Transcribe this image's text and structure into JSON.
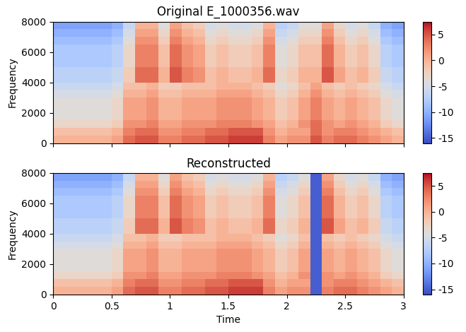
{
  "chart_data": [
    {
      "type": "heatmap",
      "title": "Original E_1000356.wav",
      "ylabel": "Frequency",
      "tick_labels": "y",
      "x_edges": [
        0,
        0.1,
        0.2,
        0.3,
        0.4,
        0.5,
        0.6,
        0.7,
        0.8,
        0.9,
        1.0,
        1.1,
        1.2,
        1.3,
        1.4,
        1.5,
        1.6,
        1.7,
        1.8,
        1.9,
        2.0,
        2.1,
        2.2,
        2.3,
        2.4,
        2.5,
        2.6,
        2.7,
        2.8,
        2.9,
        3.0
      ],
      "y_edges": [
        0,
        500,
        1000,
        1500,
        2000,
        2500,
        3000,
        3500,
        4000,
        4500,
        5000,
        5500,
        6000,
        6500,
        7000,
        7500,
        8000
      ],
      "xlim": [
        0,
        3
      ],
      "ylim": [
        0,
        8000
      ],
      "xticks": [
        0,
        0.5,
        1,
        1.5,
        2,
        2.5,
        3
      ],
      "yticks": [
        0,
        2000,
        4000,
        6000,
        8000
      ],
      "color": "coolwarm",
      "colorbar": {
        "range": [
          -16,
          7.5
        ],
        "ticks": [
          -15,
          -10,
          -5,
          0,
          5
        ]
      },
      "cells": [
        [
          0,
          0,
          0,
          0,
          0,
          1,
          4,
          5,
          5,
          3,
          3,
          4,
          4,
          5,
          5,
          6,
          6,
          6,
          3,
          1,
          2,
          2,
          5,
          3,
          4,
          4,
          3,
          2,
          1,
          0
        ],
        [
          -1,
          -1,
          -1,
          -1,
          -1,
          0,
          3,
          4,
          4,
          2,
          2,
          3,
          3,
          4,
          4,
          5,
          5,
          5,
          2,
          0,
          1,
          1,
          4,
          2,
          3,
          3,
          2,
          1,
          0,
          -1
        ],
        [
          -3,
          -3,
          -3,
          -3,
          -3,
          -2,
          2,
          2,
          3,
          1,
          1,
          2,
          2,
          2,
          3,
          3,
          3,
          2,
          1,
          -1,
          0,
          2,
          4,
          2,
          1,
          2,
          1,
          0,
          -2,
          -3
        ],
        [
          -4,
          -4,
          -4,
          -4,
          -4,
          -3,
          1,
          1,
          2,
          0,
          0,
          1,
          1,
          1,
          2,
          2,
          2,
          1,
          0,
          -2,
          -1,
          1,
          3,
          1,
          0,
          1,
          0,
          -1,
          -3,
          -4
        ],
        [
          -4,
          -4,
          -4,
          -4,
          -4,
          -3,
          1,
          1,
          2,
          0,
          0,
          1,
          1,
          1,
          2,
          2,
          2,
          1,
          0,
          -2,
          -1,
          1,
          3,
          1,
          0,
          1,
          0,
          -1,
          -3,
          -4
        ],
        [
          -4,
          -4,
          -4,
          -4,
          -4,
          -3,
          1,
          1,
          2,
          0,
          0,
          1,
          1,
          1,
          2,
          2,
          2,
          1,
          0,
          -2,
          -1,
          1,
          3,
          1,
          0,
          1,
          0,
          -1,
          -3,
          -4
        ],
        [
          -5,
          -5,
          -5,
          -5,
          -5,
          -4,
          0,
          0,
          1,
          -1,
          -1,
          0,
          0,
          0,
          1,
          1,
          1,
          0,
          -1,
          -3,
          -2,
          0,
          2,
          0,
          -1,
          0,
          -1,
          -2,
          -4,
          -5
        ],
        [
          -6,
          -6,
          -6,
          -6,
          -6,
          -5,
          -1,
          -1,
          0,
          -2,
          -2,
          -1,
          -1,
          -1,
          0,
          0,
          0,
          -1,
          -2,
          -4,
          -3,
          -1,
          1,
          -1,
          -2,
          -1,
          -2,
          -3,
          -5,
          -6
        ],
        [
          -7,
          -7,
          -7,
          -7,
          -7,
          -6,
          -2,
          4,
          4,
          0,
          5,
          3,
          2,
          -1,
          0,
          -1,
          -1,
          0,
          4,
          -3,
          -2,
          0,
          0,
          5,
          1,
          -1,
          0,
          -2,
          -6,
          -7
        ],
        [
          -7,
          -7,
          -7,
          -7,
          -7,
          -6,
          -2,
          4,
          4,
          0,
          5,
          3,
          2,
          -1,
          0,
          -1,
          -1,
          0,
          4,
          -3,
          -2,
          0,
          0,
          5,
          1,
          -1,
          0,
          -2,
          -6,
          -7
        ],
        [
          -8,
          -8,
          -8,
          -8,
          -8,
          -7,
          -3,
          3,
          3,
          -1,
          4,
          2,
          1,
          -2,
          -1,
          -2,
          -2,
          -1,
          3,
          -4,
          -3,
          -1,
          -1,
          4,
          0,
          -2,
          -1,
          -3,
          -7,
          -8
        ],
        [
          -8,
          -8,
          -8,
          -8,
          -8,
          -7,
          -3,
          3,
          3,
          -1,
          4,
          2,
          1,
          -2,
          -1,
          -2,
          -2,
          -1,
          3,
          -4,
          -3,
          -1,
          -1,
          4,
          0,
          -2,
          -1,
          -3,
          -7,
          -8
        ],
        [
          -8,
          -8,
          -8,
          -8,
          -8,
          -7,
          -3,
          3,
          3,
          -1,
          4,
          2,
          1,
          -2,
          -1,
          -2,
          -2,
          -1,
          3,
          -4,
          -3,
          -1,
          -1,
          4,
          0,
          -2,
          -1,
          -3,
          -7,
          -8
        ],
        [
          -9,
          -9,
          -9,
          -9,
          -9,
          -8,
          -4,
          2,
          2,
          -2,
          3,
          1,
          0,
          -3,
          -2,
          -3,
          -3,
          -2,
          2,
          -5,
          -4,
          -2,
          -2,
          3,
          -1,
          -3,
          -2,
          -4,
          -8,
          -9
        ],
        [
          -10,
          -10,
          -10,
          -10,
          -10,
          -9,
          -5,
          1,
          1,
          -3,
          2,
          0,
          -1,
          -4,
          -3,
          -4,
          -4,
          -3,
          1,
          -6,
          -5,
          -3,
          -3,
          2,
          -2,
          -4,
          -3,
          -5,
          -9,
          -10
        ],
        [
          -11,
          -11,
          -11,
          -11,
          -11,
          -10,
          -6,
          0,
          0,
          -4,
          1,
          -1,
          -2,
          -5,
          -4,
          -5,
          -5,
          -4,
          0,
          -7,
          -6,
          -4,
          -4,
          1,
          -3,
          -5,
          -4,
          -6,
          -10,
          -11
        ]
      ]
    },
    {
      "type": "heatmap",
      "title": "Reconstructed",
      "xlabel": "Time",
      "ylabel": "Frequency",
      "x_edges": [
        0,
        0.1,
        0.2,
        0.3,
        0.4,
        0.5,
        0.6,
        0.7,
        0.8,
        0.9,
        1.0,
        1.1,
        1.2,
        1.3,
        1.4,
        1.5,
        1.6,
        1.7,
        1.8,
        1.9,
        2.0,
        2.1,
        2.2,
        2.3,
        2.4,
        2.5,
        2.6,
        2.7,
        2.8,
        2.9,
        3.0
      ],
      "y_edges": [
        0,
        500,
        1000,
        1500,
        2000,
        2500,
        3000,
        3500,
        4000,
        4500,
        5000,
        5500,
        6000,
        6500,
        7000,
        7500,
        8000
      ],
      "xlim": [
        0,
        3
      ],
      "ylim": [
        0,
        8000
      ],
      "xticks": [
        0,
        0.5,
        1,
        1.5,
        2,
        2.5,
        3
      ],
      "yticks": [
        0,
        2000,
        4000,
        6000,
        8000
      ],
      "color": "coolwarm",
      "colorbar": {
        "range": [
          -16,
          7.5
        ],
        "ticks": [
          -15,
          -10,
          -5,
          0,
          5
        ]
      },
      "cells": [
        [
          0,
          0,
          0,
          0,
          0,
          1,
          4,
          5,
          5,
          3,
          3,
          4,
          4,
          5,
          5,
          6,
          6,
          6,
          3,
          1,
          2,
          2,
          -15,
          3,
          4,
          4,
          3,
          2,
          1,
          0
        ],
        [
          -1,
          -1,
          -1,
          -1,
          -1,
          0,
          3,
          4,
          4,
          2,
          2,
          3,
          3,
          4,
          4,
          5,
          5,
          5,
          2,
          0,
          1,
          1,
          -15,
          2,
          3,
          3,
          2,
          1,
          0,
          -1
        ],
        [
          -3,
          -3,
          -3,
          -3,
          -3,
          -2,
          2,
          2,
          3,
          1,
          1,
          2,
          2,
          2,
          3,
          3,
          3,
          2,
          1,
          -1,
          0,
          2,
          -15,
          2,
          1,
          2,
          1,
          0,
          -2,
          -3
        ],
        [
          -4,
          -4,
          -4,
          -4,
          -4,
          -3,
          1,
          1,
          2,
          0,
          0,
          1,
          1,
          1,
          2,
          2,
          2,
          1,
          0,
          -2,
          -1,
          1,
          -15,
          1,
          0,
          1,
          0,
          -1,
          -3,
          -4
        ],
        [
          -4,
          -4,
          -4,
          -4,
          -4,
          -3,
          1,
          1,
          2,
          0,
          0,
          1,
          1,
          1,
          2,
          2,
          2,
          1,
          0,
          -2,
          -1,
          1,
          -15,
          1,
          0,
          1,
          0,
          -1,
          -3,
          -4
        ],
        [
          -4,
          -4,
          -4,
          -4,
          -4,
          -3,
          1,
          1,
          2,
          0,
          0,
          1,
          1,
          1,
          2,
          2,
          2,
          1,
          0,
          -2,
          -1,
          1,
          -15,
          1,
          0,
          1,
          0,
          -1,
          -3,
          -4
        ],
        [
          -5,
          -5,
          -5,
          -5,
          -5,
          -4,
          0,
          0,
          1,
          -1,
          -1,
          0,
          0,
          0,
          1,
          1,
          1,
          0,
          -1,
          -3,
          -2,
          0,
          -15,
          0,
          -1,
          0,
          -1,
          -2,
          -4,
          -5
        ],
        [
          -6,
          -6,
          -6,
          -6,
          -6,
          -5,
          -1,
          -1,
          0,
          -2,
          -2,
          -1,
          -1,
          -1,
          0,
          0,
          0,
          -1,
          -2,
          -4,
          -3,
          -1,
          -15,
          -1,
          -2,
          -1,
          -2,
          -3,
          -5,
          -6
        ],
        [
          -7,
          -7,
          -7,
          -7,
          -7,
          -6,
          -2,
          4,
          4,
          0,
          5,
          3,
          2,
          -1,
          0,
          -1,
          -1,
          0,
          4,
          -3,
          -2,
          0,
          -15,
          5,
          1,
          -1,
          0,
          -2,
          -6,
          -7
        ],
        [
          -7,
          -7,
          -7,
          -7,
          -7,
          -6,
          -2,
          4,
          4,
          0,
          5,
          3,
          2,
          -1,
          0,
          -1,
          -1,
          0,
          4,
          -3,
          -2,
          0,
          -15,
          5,
          1,
          -1,
          0,
          -2,
          -6,
          -7
        ],
        [
          -8,
          -8,
          -8,
          -8,
          -8,
          -7,
          -3,
          3,
          3,
          -1,
          4,
          2,
          1,
          -2,
          -1,
          -2,
          -2,
          -1,
          3,
          -4,
          -3,
          -1,
          -15,
          4,
          0,
          -2,
          -1,
          -3,
          -7,
          -8
        ],
        [
          -8,
          -8,
          -8,
          -8,
          -8,
          -7,
          -3,
          3,
          3,
          -1,
          4,
          2,
          1,
          -2,
          -1,
          -2,
          -2,
          -1,
          3,
          -4,
          -3,
          -1,
          -15,
          4,
          0,
          -2,
          -1,
          -3,
          -7,
          -8
        ],
        [
          -8,
          -8,
          -8,
          -8,
          -8,
          -7,
          -3,
          3,
          3,
          -1,
          4,
          2,
          1,
          -2,
          -1,
          -2,
          -2,
          -1,
          3,
          -4,
          -3,
          -1,
          -15,
          4,
          0,
          -2,
          -1,
          -3,
          -7,
          -8
        ],
        [
          -9,
          -9,
          -9,
          -9,
          -9,
          -8,
          -4,
          2,
          2,
          -2,
          3,
          1,
          0,
          -3,
          -2,
          -3,
          -3,
          -2,
          2,
          -5,
          -4,
          -2,
          -15,
          3,
          -1,
          -3,
          -2,
          -4,
          -8,
          -9
        ],
        [
          -10,
          -10,
          -10,
          -10,
          -10,
          -9,
          -5,
          1,
          1,
          -3,
          2,
          0,
          -1,
          -4,
          -3,
          -4,
          -4,
          -3,
          1,
          -6,
          -5,
          -3,
          -15,
          2,
          -2,
          -4,
          -3,
          -5,
          -9,
          -10
        ],
        [
          -11,
          -11,
          -11,
          -11,
          -11,
          -10,
          -6,
          0,
          0,
          -4,
          1,
          -1,
          -2,
          -5,
          -4,
          -5,
          -5,
          -4,
          0,
          -7,
          -6,
          -4,
          -15,
          1,
          -3,
          -5,
          -4,
          -6,
          -10,
          -11
        ]
      ]
    }
  ]
}
